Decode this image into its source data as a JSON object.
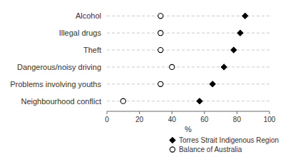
{
  "chart_data": {
    "type": "dot",
    "orientation": "horizontal",
    "xlabel": "%",
    "categories": [
      "Neighbourhood conflict",
      "Problems involving youths",
      "Dangerous/noisy driving",
      "Theft",
      "Illegal drugs",
      "Alcohol"
    ],
    "series": [
      {
        "name": "Torres Strait Indigenous Region",
        "color": "black",
        "marker": "diamond",
        "values": [
          57,
          65,
          72,
          78,
          82,
          85
        ]
      },
      {
        "name": "Balance of Australia",
        "color": "white",
        "marker": "circle",
        "values": [
          10,
          33,
          40,
          33,
          33,
          33
        ]
      }
    ],
    "xlim": [
      0,
      100
    ],
    "xticks": [
      0,
      20,
      40,
      60,
      80,
      100
    ],
    "grid": true,
    "legend": "lower right"
  }
}
